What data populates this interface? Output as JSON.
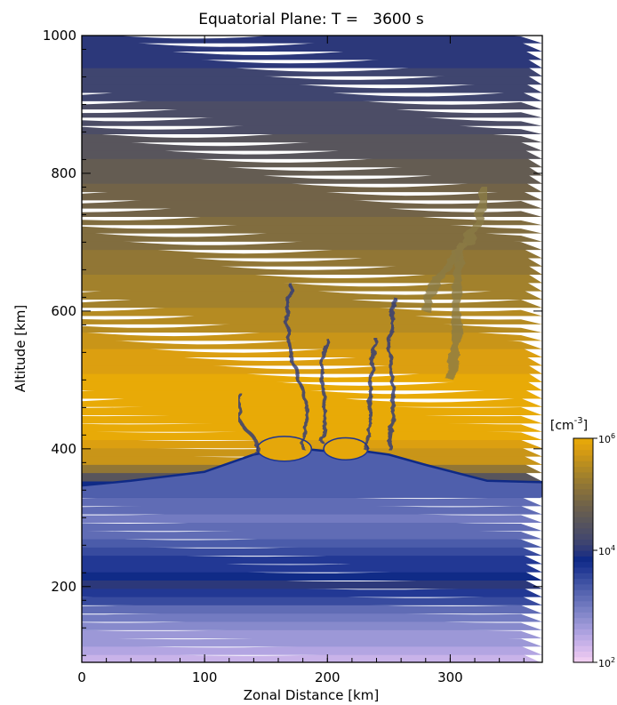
{
  "chart_data": {
    "type": "heatmap",
    "title": "Equatorial Plane: T =   3600 s",
    "xlabel": "Zonal Distance [km]",
    "ylabel": "Altitude [km]",
    "xlim": [
      0,
      375
    ],
    "ylim": [
      90,
      1000
    ],
    "xticks": [
      "0",
      "100",
      "200",
      "300"
    ],
    "xtick_values": [
      0,
      100,
      200,
      300
    ],
    "yticks": [
      "200",
      "400",
      "600",
      "800",
      "1000"
    ],
    "ytick_values": [
      200,
      400,
      600,
      800,
      1000
    ],
    "colorbar": {
      "label": "[cm",
      "label_exp": "-3",
      "label_close": "]",
      "ticks": [
        "10",
        "10",
        "10"
      ],
      "tick_exps": [
        "2",
        "4",
        "6"
      ],
      "tick_log_values": [
        2,
        4,
        6
      ],
      "colors": [
        "#f5d2f2",
        "#e2c2ee",
        "#cdb5ea",
        "#b8a8e4",
        "#a39cdb",
        "#8f8fd0",
        "#7c82c6",
        "#6a74bb",
        "#5866b1",
        "#4557a6",
        "#33479c",
        "#1e3592",
        "#0f2a86",
        "#2c387a",
        "#3e4470",
        "#4a4c68",
        "#55535e",
        "#605a55",
        "#6c604c",
        "#7a6843",
        "#88713a",
        "#977a31",
        "#a78429",
        "#b98d20",
        "#cc9617",
        "#deA00f",
        "#e8aa07"
      ],
      "scale": "log"
    },
    "density_log10_profile_by_altitude_km": [
      [
        90,
        2.3
      ],
      [
        130,
        2.7
      ],
      [
        170,
        3.2
      ],
      [
        205,
        4.0
      ],
      [
        240,
        3.6
      ],
      [
        300,
        3.0
      ],
      [
        340,
        3.3
      ],
      [
        352,
        4.1
      ],
      [
        380,
        5.6
      ],
      [
        420,
        5.95
      ],
      [
        500,
        6.0
      ],
      [
        540,
        5.75
      ],
      [
        600,
        5.45
      ],
      [
        700,
        5.05
      ],
      [
        780,
        4.75
      ],
      [
        900,
        4.25
      ],
      [
        1000,
        3.95
      ]
    ],
    "description_features": "upwelling plumes near 140, 175, 230 and 250 km"
  }
}
